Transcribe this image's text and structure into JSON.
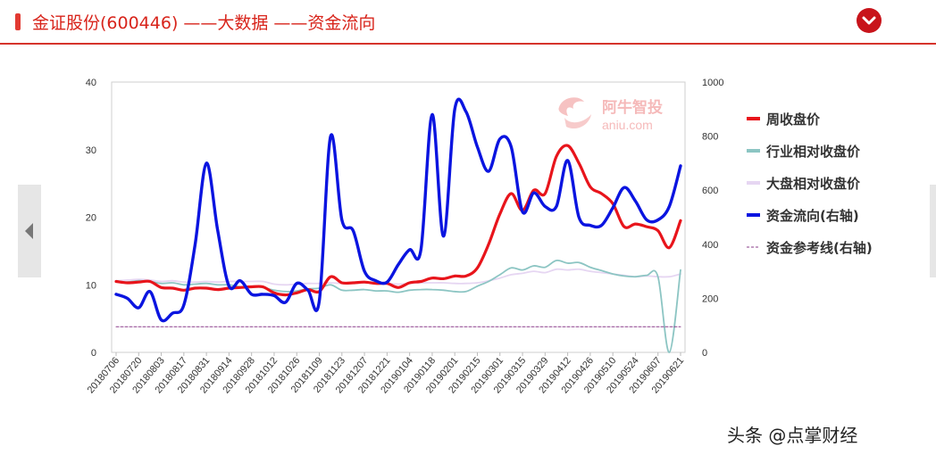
{
  "header": {
    "title": "金证股份(600446) ——大数据 ——资金流向"
  },
  "icons": {
    "collapse": "chevron-down-icon",
    "prev": "caret-left-icon"
  },
  "colors": {
    "accent": "#d6332c",
    "price": "#e8141b",
    "industry": "#8cc5c3",
    "market": "#e6d6f2",
    "flow": "#0a14e0",
    "reference": "#8a3c8a"
  },
  "logo": {
    "name": "阿牛智投",
    "domain": "aniu.com"
  },
  "watermark": "头条 @点掌财经",
  "chart_data": {
    "type": "line",
    "grid": false,
    "legend_position": "right",
    "y_left": {
      "min": 0,
      "max": 40,
      "ticks": [
        0,
        10,
        20,
        30,
        40
      ]
    },
    "y_right": {
      "min": 0,
      "max": 1000,
      "ticks": [
        0,
        200,
        400,
        600,
        800,
        1000
      ]
    },
    "categories": [
      "20180706",
      "20180720",
      "20180803",
      "20180817",
      "20180831",
      "20180914",
      "20180928",
      "20181012",
      "20181026",
      "20181109",
      "20181123",
      "20181207",
      "20181221",
      "20190104",
      "20190118",
      "20190201",
      "20190215",
      "20190301",
      "20190315",
      "20190329",
      "20190412",
      "20190426",
      "20190510",
      "20190524",
      "20190607",
      "20190621"
    ],
    "x": [
      "20180706",
      "20180713",
      "20180720",
      "20180727",
      "20180803",
      "20180810",
      "20180817",
      "20180824",
      "20180831",
      "20180907",
      "20180914",
      "20180921",
      "20180928",
      "20181005",
      "20181012",
      "20181019",
      "20181026",
      "20181102",
      "20181109",
      "20181116",
      "20181123",
      "20181130",
      "20181207",
      "20181214",
      "20181221",
      "20181228",
      "20190104",
      "20190111",
      "20190118",
      "20190125",
      "20190201",
      "20190208",
      "20190215",
      "20190222",
      "20190301",
      "20190308",
      "20190315",
      "20190322",
      "20190329",
      "20190405",
      "20190412",
      "20190419",
      "20190426",
      "20190503",
      "20190510",
      "20190517",
      "20190524",
      "20190531",
      "20190607",
      "20190614",
      "20190621"
    ],
    "series": [
      {
        "name": "周收盘价",
        "axis": "left",
        "values": [
          10.5,
          10.3,
          10.4,
          10.5,
          9.6,
          9.5,
          9.2,
          9.5,
          9.5,
          9.3,
          9.5,
          9.6,
          9.7,
          9.7,
          8.8,
          8.5,
          8.8,
          9.3,
          9.0,
          11.2,
          10.3,
          10.3,
          10.4,
          10.2,
          10.2,
          9.6,
          10.3,
          10.5,
          11.0,
          10.9,
          11.3,
          11.3,
          12.5,
          16.0,
          20.5,
          23.5,
          21.0,
          24.0,
          23.5,
          29.0,
          30.6,
          28.0,
          24.5,
          23.5,
          22.0,
          18.6,
          19.0,
          18.6,
          18.0,
          15.5,
          19.5
        ]
      },
      {
        "name": "行业相对收盘价",
        "axis": "left",
        "values": [
          10.5,
          10.4,
          10.6,
          10.5,
          10.2,
          10.3,
          10.0,
          10.1,
          10.2,
          10.0,
          10.0,
          9.7,
          9.7,
          9.6,
          9.2,
          9.0,
          9.1,
          9.4,
          9.5,
          10.0,
          9.2,
          9.2,
          9.3,
          9.1,
          9.1,
          8.9,
          9.2,
          9.3,
          9.3,
          9.2,
          9.0,
          9.0,
          9.8,
          10.5,
          11.5,
          12.5,
          12.2,
          12.8,
          12.6,
          13.6,
          13.2,
          13.3,
          12.6,
          12.1,
          11.6,
          11.3,
          11.2,
          11.4,
          11.2,
          0.0,
          12.2
        ]
      },
      {
        "name": "大盘相对收盘价",
        "axis": "left",
        "values": [
          10.6,
          10.7,
          10.8,
          10.7,
          10.5,
          10.6,
          10.4,
          10.4,
          10.5,
          10.4,
          10.5,
          10.5,
          10.5,
          10.5,
          10.1,
          10.0,
          10.1,
          10.2,
          10.2,
          10.3,
          10.2,
          10.3,
          10.3,
          10.2,
          10.2,
          10.1,
          10.2,
          10.3,
          10.3,
          10.3,
          10.2,
          10.2,
          10.3,
          10.6,
          11.0,
          11.5,
          11.7,
          12.0,
          11.8,
          12.3,
          12.2,
          12.3,
          12.0,
          11.8,
          11.6,
          11.4,
          11.2,
          11.3,
          11.2,
          11.2,
          11.6
        ]
      },
      {
        "name": "资金流向(右轴)",
        "axis": "right",
        "values": [
          215,
          200,
          165,
          225,
          120,
          145,
          175,
          400,
          700,
          450,
          245,
          265,
          215,
          215,
          210,
          185,
          255,
          230,
          190,
          800,
          490,
          450,
          300,
          265,
          260,
          325,
          380,
          380,
          880,
          430,
          900,
          890,
          760,
          670,
          790,
          760,
          520,
          590,
          540,
          540,
          710,
          500,
          470,
          470,
          535,
          610,
          560,
          490,
          490,
          540,
          690
        ]
      },
      {
        "name": "资金参考线(右轴)",
        "axis": "right",
        "style": "dashed",
        "values": [
          95,
          95,
          95,
          95,
          95,
          95,
          95,
          95,
          95,
          95,
          95,
          95,
          95,
          95,
          95,
          95,
          95,
          95,
          95,
          95,
          95,
          95,
          95,
          95,
          95,
          95,
          95,
          95,
          95,
          95,
          95,
          95,
          95,
          95,
          95,
          95,
          95,
          95,
          95,
          95,
          95,
          95,
          95,
          95,
          95,
          95,
          95,
          95,
          95,
          95,
          95
        ]
      }
    ]
  }
}
